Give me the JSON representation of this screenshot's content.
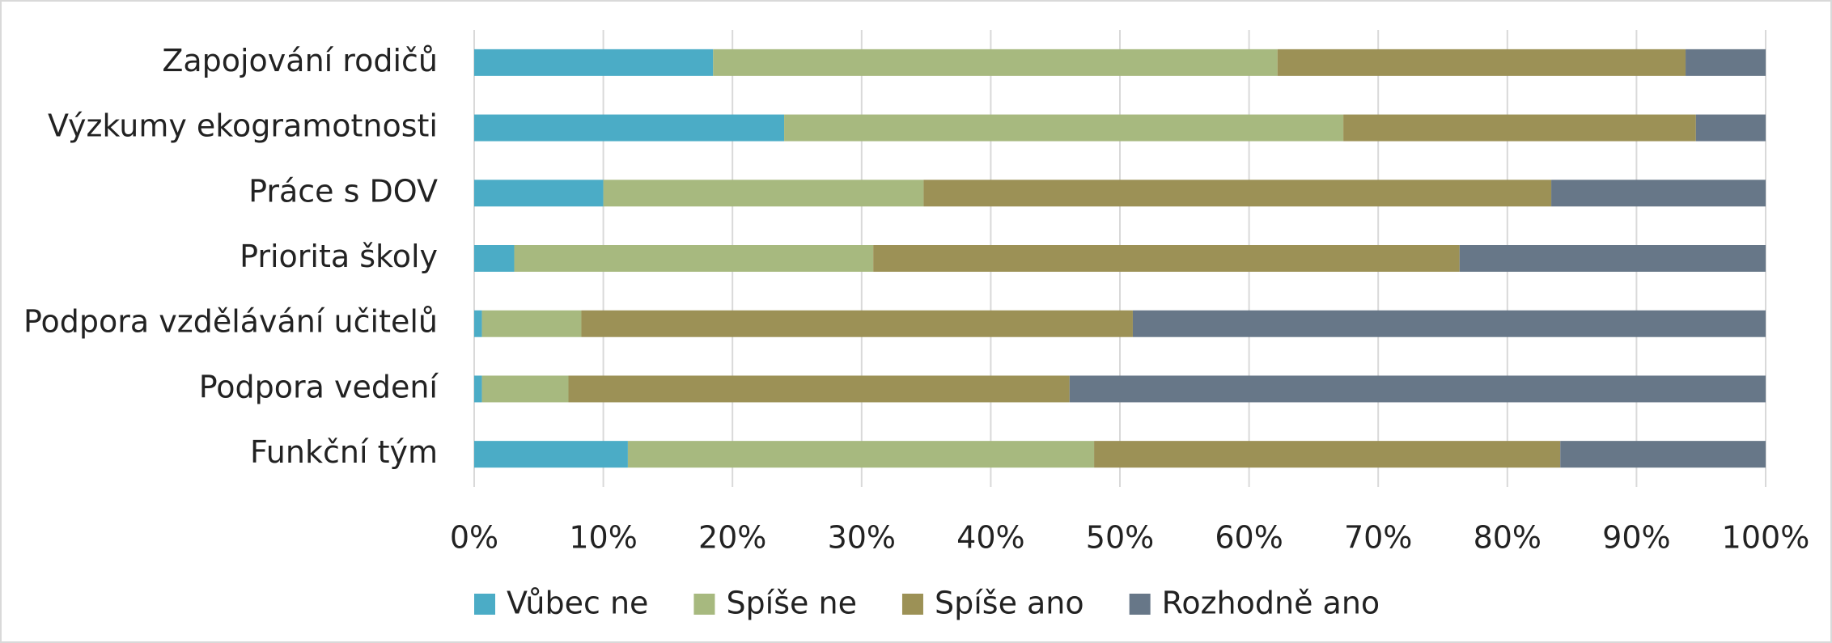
{
  "chart_data": {
    "type": "stacked-barh",
    "categories": [
      "Zapojování rodičů",
      "Výzkumy ekogramotnosti",
      "Práce s DOV",
      "Priorita školy",
      "Podpora vzdělávání učitelů",
      "Podpora vedení",
      "Funkční tým"
    ],
    "series": [
      {
        "name": "Vůbec ne",
        "color": "#4bacc6",
        "values": [
          18.5,
          24.0,
          10.0,
          3.1,
          0.6,
          0.6,
          11.9
        ]
      },
      {
        "name": "Spíše ne",
        "color": "#a7b97f",
        "values": [
          43.7,
          43.3,
          24.8,
          27.8,
          7.7,
          6.7,
          36.1
        ]
      },
      {
        "name": "Spíše ano",
        "color": "#9c9156",
        "values": [
          31.6,
          27.3,
          48.6,
          45.4,
          42.7,
          38.8,
          36.1
        ]
      },
      {
        "name": "Rozhodně ano",
        "color": "#677788",
        "values": [
          6.2,
          5.4,
          16.6,
          23.7,
          49.0,
          53.9,
          15.9
        ]
      }
    ],
    "xlim": [
      0,
      100
    ],
    "xticks": [
      {
        "value": 0,
        "label": "0%"
      },
      {
        "value": 10,
        "label": "10%"
      },
      {
        "value": 20,
        "label": "20%"
      },
      {
        "value": 30,
        "label": "30%"
      },
      {
        "value": 40,
        "label": "40%"
      },
      {
        "value": 50,
        "label": "50%"
      },
      {
        "value": 60,
        "label": "60%"
      },
      {
        "value": 70,
        "label": "70%"
      },
      {
        "value": 80,
        "label": "80%"
      },
      {
        "value": 90,
        "label": "90%"
      },
      {
        "value": 100,
        "label": "100%"
      }
    ],
    "grid": true,
    "legend": "bottom"
  }
}
